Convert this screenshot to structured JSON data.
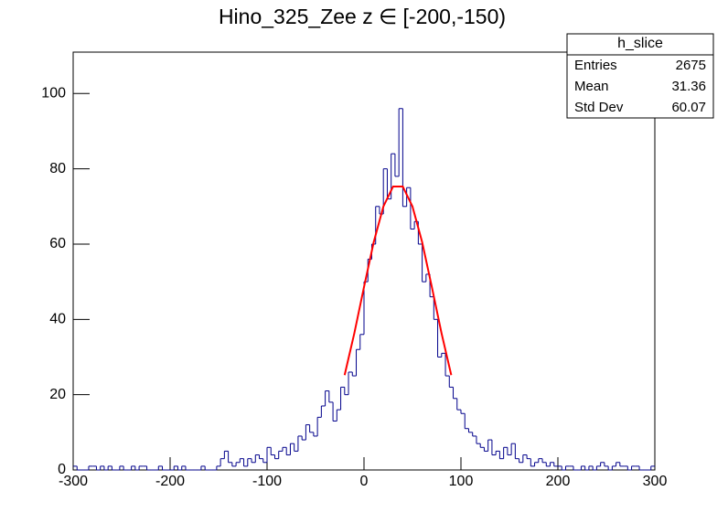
{
  "chart_data": {
    "type": "histogram",
    "title": "Hino_325_Zee z  ∈ [-200,-150)",
    "color": "#00008b",
    "bins": [
      -300,
      -296,
      -292,
      -288,
      -284,
      -280,
      -276,
      -272,
      -268,
      -264,
      -260,
      -256,
      -252,
      -248,
      -244,
      -240,
      -236,
      -232,
      -228,
      -224,
      -220,
      -216,
      -212,
      -208,
      -204,
      -200,
      -196,
      -192,
      -188,
      -184,
      -180,
      -176,
      -172,
      -168,
      -164,
      -160,
      -156,
      -152,
      -148,
      -144,
      -140,
      -136,
      -132,
      -128,
      -124,
      -120,
      -116,
      -112,
      -108,
      -104,
      -100,
      -96,
      -92,
      -88,
      -84,
      -80,
      -76,
      -72,
      -68,
      -64,
      -60,
      -56,
      -52,
      -48,
      -44,
      -40,
      -36,
      -32,
      -28,
      -24,
      -20,
      -16,
      -12,
      -8,
      -4,
      0,
      4,
      8,
      12,
      16,
      20,
      24,
      28,
      32,
      36,
      40,
      44,
      48,
      52,
      56,
      60,
      64,
      68,
      72,
      76,
      80,
      84,
      88,
      92,
      96,
      100,
      104,
      108,
      112,
      116,
      120,
      124,
      128,
      132,
      136,
      140,
      144,
      148,
      152,
      156,
      160,
      164,
      168,
      172,
      176,
      180,
      184,
      188,
      192,
      196,
      200,
      204,
      208,
      212,
      216,
      220,
      224,
      228,
      232,
      236,
      240,
      244,
      248,
      252,
      256,
      260,
      264,
      268,
      272,
      276,
      280,
      284,
      288,
      292,
      296,
      300
    ],
    "values": [
      1,
      0,
      0,
      0,
      1,
      1,
      0,
      1,
      0,
      1,
      0,
      0,
      1,
      0,
      0,
      1,
      0,
      1,
      1,
      0,
      0,
      0,
      1,
      0,
      0,
      0,
      1,
      0,
      1,
      0,
      0,
      0,
      0,
      1,
      0,
      0,
      0,
      1,
      3,
      5,
      2,
      1,
      2,
      3,
      1,
      3,
      2,
      4,
      3,
      2,
      6,
      4,
      3,
      5,
      6,
      4,
      7,
      5,
      9,
      8,
      12,
      10,
      9,
      14,
      17,
      21,
      18,
      13,
      16,
      22,
      20,
      26,
      25,
      32,
      36,
      50,
      56,
      60,
      70,
      68,
      80,
      72,
      84,
      78,
      96,
      70,
      75,
      64,
      66,
      60,
      50,
      52,
      46,
      40,
      30,
      31,
      25,
      22,
      19,
      16,
      15,
      11,
      10,
      9,
      7,
      6,
      5,
      8,
      4,
      5,
      3,
      6,
      4,
      7,
      3,
      2,
      4,
      3,
      1,
      2,
      3,
      2,
      1,
      2,
      1,
      1,
      0,
      1,
      1,
      0,
      0,
      1,
      0,
      1,
      0,
      1,
      2,
      1,
      0,
      1,
      2,
      1,
      1,
      0,
      1,
      1,
      0,
      0,
      0,
      1
    ],
    "fit": {
      "color": "#ff0000",
      "x": [
        -20,
        -10,
        0,
        10,
        20,
        30,
        40,
        50,
        60,
        70,
        80,
        90
      ],
      "y": [
        25.2,
        36.3,
        48.6,
        60.5,
        70,
        75.3,
        75.3,
        70,
        60.5,
        48.6,
        36.3,
        25.2
      ]
    },
    "xlim": [
      -300,
      300
    ],
    "xticks": [
      -300,
      -200,
      -100,
      0,
      100,
      200,
      300
    ],
    "ylim": [
      0,
      111
    ],
    "yticks": [
      0,
      20,
      40,
      60,
      80,
      100
    ],
    "stats": {
      "title": "h_slice",
      "rows": [
        [
          "Entries",
          "2675"
        ],
        [
          "Mean",
          "31.36"
        ],
        [
          "Std Dev",
          "60.07"
        ]
      ]
    }
  }
}
